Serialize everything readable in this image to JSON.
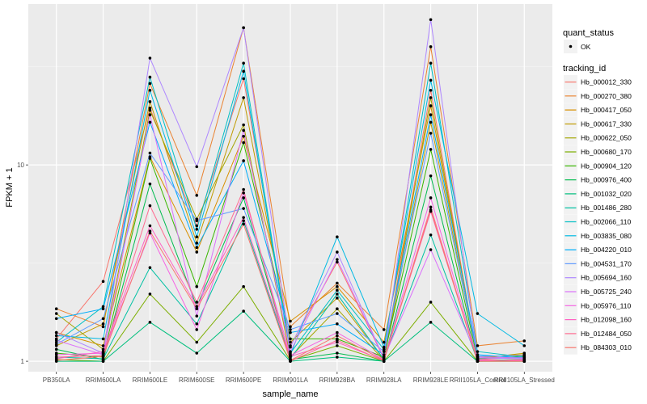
{
  "chart_data": {
    "type": "line",
    "title": "",
    "xlabel": "sample_name",
    "ylabel": "FPKM + 1",
    "y_scale": "log10",
    "ylim": [
      0.885,
      66
    ],
    "y_ticks": [
      {
        "value": 1,
        "label": "1"
      },
      {
        "value": 10,
        "label": "10"
      }
    ],
    "grid": true,
    "legend_position": "right",
    "categories": [
      "PB350LA",
      "RRIM600LA",
      "RRIM600LE",
      "RRIM600SE",
      "RRIM600PE",
      "RRIM901LA",
      "RRIM928BA",
      "RRIM928LA",
      "RRIM928LE",
      "RRII105LA_Control",
      "RRII105LA_Stressed"
    ],
    "shape_legend": {
      "title": "quant_status",
      "entries": [
        {
          "label": "OK"
        }
      ]
    },
    "color_legend_title": "tracking_id",
    "series": [
      {
        "name": "Hb_000012_330",
        "color": "#F8766D",
        "values": [
          1.3,
          2.55,
          19.5,
          4.9,
          27.5,
          1.2,
          3.2,
          1.03,
          24.0,
          1.02,
          1.05
        ]
      },
      {
        "name": "Hb_000270_380",
        "color": "#EA8331",
        "values": [
          1.85,
          1.5,
          26.0,
          7.0,
          50.0,
          1.5,
          2.5,
          1.45,
          40.0,
          1.2,
          1.27
        ]
      },
      {
        "name": "Hb_000417_050",
        "color": "#D89000",
        "values": [
          1.4,
          1.2,
          11.0,
          3.6,
          14.0,
          1.6,
          2.4,
          1.25,
          20.0,
          1.05,
          1.08
        ]
      },
      {
        "name": "Hb_000617_330",
        "color": "#C09B00",
        "values": [
          1.2,
          1.55,
          21.0,
          4.0,
          22.0,
          1.25,
          2.1,
          1.02,
          16.5,
          1.03,
          1.1
        ]
      },
      {
        "name": "Hb_000622_050",
        "color": "#A3A500",
        "values": [
          1.75,
          1.15,
          19.0,
          5.3,
          16.0,
          1.05,
          1.85,
          1.01,
          22.0,
          1.01,
          1.02
        ]
      },
      {
        "name": "Hb_000680_170",
        "color": "#7CAE00",
        "values": [
          1.02,
          1.0,
          2.2,
          1.25,
          2.4,
          1.01,
          1.2,
          1.0,
          2.0,
          1.0,
          1.0
        ]
      },
      {
        "name": "Hb_000904_120",
        "color": "#39B600",
        "values": [
          1.1,
          1.05,
          10.8,
          2.4,
          13.0,
          1.3,
          1.3,
          1.05,
          12.0,
          1.03,
          1.06
        ]
      },
      {
        "name": "Hb_000976_400",
        "color": "#00BB4E",
        "values": [
          1.15,
          1.02,
          8.0,
          1.9,
          6.8,
          1.02,
          1.1,
          1.0,
          8.8,
          1.0,
          1.01
        ]
      },
      {
        "name": "Hb_001032_020",
        "color": "#00BF7D",
        "values": [
          1.0,
          1.0,
          1.58,
          1.1,
          1.8,
          1.0,
          1.05,
          1.0,
          1.58,
          1.0,
          1.0
        ]
      },
      {
        "name": "Hb_001486_280",
        "color": "#00C1A3",
        "values": [
          1.05,
          1.03,
          3.0,
          1.55,
          5.2,
          1.03,
          2.2,
          1.02,
          4.4,
          1.01,
          1.02
        ]
      },
      {
        "name": "Hb_002066_110",
        "color": "#00BFC4",
        "values": [
          1.25,
          1.9,
          28.0,
          4.7,
          33.0,
          1.1,
          2.3,
          1.15,
          33.0,
          1.12,
          1.05
        ]
      },
      {
        "name": "Hb_003835_080",
        "color": "#00B9E3",
        "values": [
          1.35,
          1.3,
          24.0,
          4.3,
          30.0,
          1.08,
          4.3,
          1.18,
          27.0,
          1.75,
          1.2
        ]
      },
      {
        "name": "Hb_004220_010",
        "color": "#00ADFA",
        "values": [
          1.65,
          1.85,
          16.5,
          3.8,
          10.5,
          1.4,
          1.55,
          1.08,
          18.0,
          1.08,
          1.04
        ]
      },
      {
        "name": "Hb_004531_170",
        "color": "#619CFF",
        "values": [
          1.22,
          1.65,
          11.5,
          5.2,
          6.0,
          1.45,
          1.75,
          1.12,
          14.5,
          1.06,
          1.07
        ]
      },
      {
        "name": "Hb_005694_160",
        "color": "#AE87FF",
        "values": [
          1.4,
          1.1,
          35.0,
          9.8,
          50.0,
          1.18,
          3.6,
          1.03,
          55.0,
          1.04,
          1.03
        ]
      },
      {
        "name": "Hb_005725_240",
        "color": "#DB72FB",
        "values": [
          1.28,
          1.08,
          18.0,
          1.7,
          15.0,
          1.12,
          3.3,
          1.04,
          3.7,
          1.05,
          1.04
        ]
      },
      {
        "name": "Hb_005976_110",
        "color": "#F564E3",
        "values": [
          1.08,
          1.1,
          4.5,
          1.45,
          7.2,
          1.07,
          1.4,
          1.02,
          6.8,
          1.02,
          1.0
        ]
      },
      {
        "name": "Hb_012098_160",
        "color": "#FF61C3",
        "values": [
          1.03,
          1.12,
          4.9,
          1.9,
          5.4,
          1.06,
          1.25,
          1.01,
          5.8,
          1.01,
          1.01
        ]
      },
      {
        "name": "Hb_012484_050",
        "color": "#FF6C91",
        "values": [
          1.05,
          1.07,
          6.2,
          2.0,
          7.5,
          1.0,
          1.28,
          1.0,
          6.1,
          1.0,
          1.02
        ]
      },
      {
        "name": "Hb_084303_010",
        "color": "#F8766D",
        "values": [
          1.01,
          1.06,
          4.6,
          1.85,
          5.0,
          1.01,
          1.35,
          1.01,
          5.9,
          1.0,
          1.0
        ]
      }
    ]
  }
}
